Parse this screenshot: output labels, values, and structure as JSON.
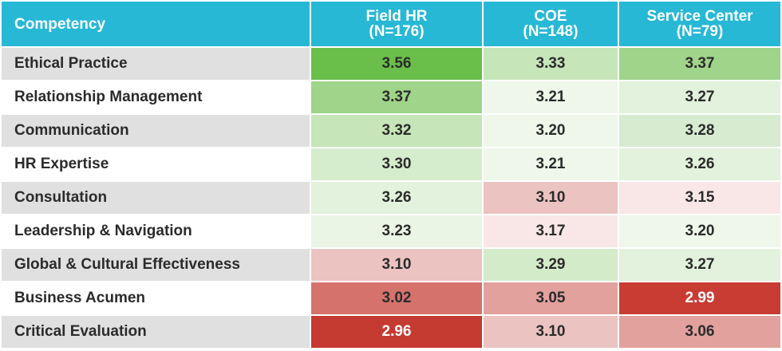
{
  "table": {
    "header": [
      "Competency",
      "Field HR\n(N=176)",
      "COE\n(N=148)",
      "Service Center\n(N=79)"
    ],
    "rows": [
      [
        "Ethical Practice",
        "3.56",
        "3.33",
        "3.37"
      ],
      [
        "Relationship Management",
        "3.37",
        "3.21",
        "3.27"
      ],
      [
        "Communication",
        "3.32",
        "3.20",
        "3.28"
      ],
      [
        "HR Expertise",
        "3.30",
        "3.21",
        "3.26"
      ],
      [
        "Consultation",
        "3.26",
        "3.10",
        "3.15"
      ],
      [
        "Leadership & Navigation",
        "3.23",
        "3.17",
        "3.20"
      ],
      [
        "Global & Cultural Effectiveness",
        "3.10",
        "3.29",
        "3.27"
      ],
      [
        "Business Acumen",
        "3.02",
        "3.05",
        "2.99"
      ],
      [
        "Critical Evaluation",
        "2.96",
        "3.10",
        "3.06"
      ]
    ],
    "cell_colors": [
      [
        "#6abf4b",
        "#c6e5b8",
        "#9fd48a"
      ],
      [
        "#9fd48a",
        "#eef7ea",
        "#e3f2dc"
      ],
      [
        "#c6e5b8",
        "#eef7ea",
        "#d7ebd0"
      ],
      [
        "#d5edcc",
        "#eef7ea",
        "#e3f2dc"
      ],
      [
        "#e3f2dc",
        "#ebc3c1",
        "#f8e7e6"
      ],
      [
        "#eaf5e5",
        "#f8e7e6",
        "#eef7ea"
      ],
      [
        "#ebc3c1",
        "#d3ebc9",
        "#e3f2dc"
      ],
      [
        "#d5726c",
        "#e2a19d",
        "#c83c34"
      ],
      [
        "#c53a31",
        "#ebc3c1",
        "#e2a19d"
      ]
    ]
  }
}
